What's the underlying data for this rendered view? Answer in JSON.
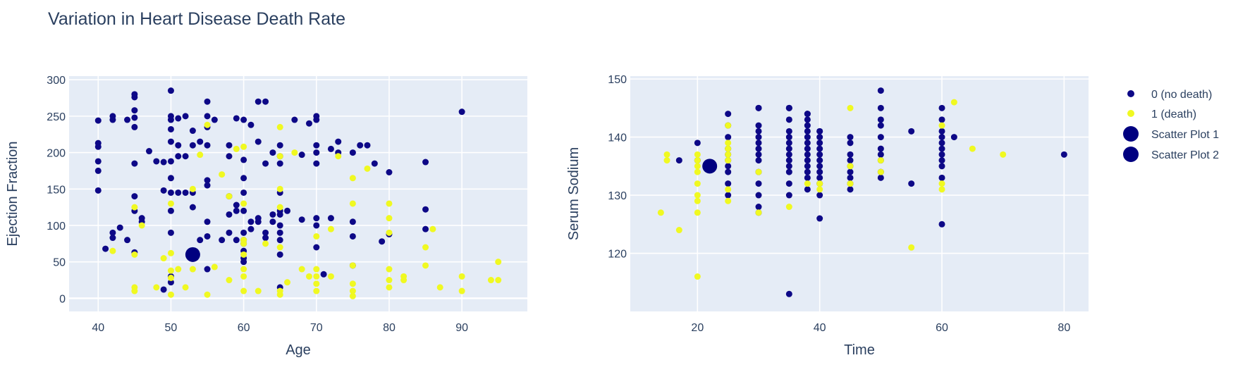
{
  "title": "Variation in Heart Disease Death Rate",
  "colors": {
    "no_death": "#0d0887",
    "death": "#f0f921",
    "plot_bg": "#e5ecf6",
    "text": "#2a3f5f"
  },
  "legend": {
    "items": [
      {
        "label": "0 (no death)",
        "color": "#0d0887",
        "marker": "small"
      },
      {
        "label": "1 (death)",
        "color": "#f0f921",
        "marker": "small"
      },
      {
        "label": "Scatter Plot 1",
        "color": "#000080",
        "marker": "large"
      },
      {
        "label": "Scatter Plot 2",
        "color": "#000080",
        "marker": "large"
      }
    ]
  },
  "chart_data": [
    {
      "type": "scatter",
      "xlabel": "Age",
      "ylabel": "Ejection Fraction",
      "xlim": [
        36,
        99
      ],
      "ylim": [
        -18,
        305
      ],
      "xticks": [
        40,
        50,
        60,
        70,
        80,
        90
      ],
      "yticks": [
        0,
        50,
        100,
        150,
        200,
        250,
        300
      ],
      "grid": true,
      "series": [
        {
          "name": "0 (no death)",
          "x": [
            40,
            40,
            40,
            40,
            40,
            40,
            41,
            42,
            42,
            42,
            42,
            43,
            44,
            44,
            45,
            45,
            45,
            45,
            45,
            45,
            45,
            45,
            45,
            46,
            46,
            47,
            48,
            49,
            49,
            49,
            50,
            50,
            50,
            50,
            50,
            50,
            50,
            50,
            50,
            50,
            50,
            50,
            51,
            51,
            51,
            51,
            52,
            52,
            52,
            53,
            53,
            53,
            53,
            53,
            54,
            54,
            55,
            55,
            55,
            55,
            55,
            55,
            55,
            55,
            55,
            56,
            57,
            58,
            58,
            58,
            58,
            58,
            59,
            59,
            59,
            59,
            60,
            60,
            60,
            60,
            60,
            60,
            60,
            60,
            60,
            60,
            60,
            61,
            61,
            61,
            62,
            62,
            62,
            62,
            63,
            63,
            63,
            63,
            64,
            64,
            64,
            65,
            65,
            65,
            65,
            65,
            65,
            65,
            65,
            65,
            65,
            65,
            66,
            67,
            68,
            68,
            69,
            70,
            70,
            70,
            70,
            70,
            70,
            70,
            70,
            71,
            72,
            72,
            73,
            73,
            75,
            75,
            75,
            75,
            76,
            77,
            78,
            79,
            80,
            80,
            85,
            85,
            85,
            90
          ],
          "y": [
            148,
            175,
            188,
            208,
            213,
            244,
            68,
            83,
            90,
            245,
            250,
            97,
            80,
            245,
            63,
            120,
            140,
            185,
            235,
            248,
            258,
            276,
            280,
            105,
            110,
            202,
            188,
            12,
            148,
            187,
            22,
            30,
            90,
            120,
            145,
            165,
            188,
            215,
            232,
            245,
            250,
            285,
            145,
            195,
            210,
            247,
            145,
            195,
            250,
            65,
            125,
            145,
            210,
            230,
            215,
            80,
            40,
            85,
            105,
            155,
            162,
            210,
            235,
            250,
            270,
            245,
            80,
            90,
            115,
            140,
            195,
            210,
            80,
            120,
            128,
            247,
            50,
            55,
            65,
            75,
            80,
            90,
            120,
            145,
            165,
            190,
            245,
            95,
            105,
            238,
            105,
            110,
            215,
            270,
            83,
            90,
            185,
            270,
            105,
            115,
            200,
            15,
            60,
            80,
            90,
            100,
            115,
            120,
            145,
            185,
            195,
            210,
            120,
            245,
            108,
            197,
            240,
            70,
            100,
            110,
            185,
            200,
            210,
            245,
            250,
            33,
            110,
            205,
            200,
            215,
            45,
            85,
            105,
            200,
            210,
            210,
            185,
            78,
            88,
            173,
            95,
            122,
            187,
            256
          ]
        },
        {
          "name": "1 (death)",
          "x": [
            42,
            45,
            45,
            45,
            45,
            46,
            48,
            49,
            50,
            50,
            50,
            50,
            50,
            51,
            52,
            53,
            53,
            54,
            55,
            55,
            56,
            57,
            58,
            58,
            59,
            60,
            60,
            60,
            60,
            60,
            60,
            60,
            60,
            62,
            63,
            65,
            65,
            65,
            65,
            65,
            65,
            65,
            66,
            67,
            68,
            69,
            70,
            70,
            70,
            70,
            70,
            72,
            72,
            73,
            75,
            75,
            75,
            75,
            75,
            75,
            77,
            80,
            80,
            80,
            80,
            80,
            80,
            82,
            82,
            85,
            85,
            86,
            87,
            90,
            90,
            94,
            95,
            95
          ],
          "y": [
            65,
            10,
            15,
            60,
            125,
            100,
            15,
            55,
            5,
            28,
            38,
            62,
            130,
            40,
            15,
            40,
            150,
            197,
            5,
            238,
            43,
            170,
            25,
            140,
            205,
            10,
            30,
            40,
            60,
            75,
            80,
            130,
            208,
            10,
            75,
            5,
            10,
            70,
            125,
            150,
            195,
            235,
            22,
            200,
            40,
            30,
            10,
            20,
            30,
            40,
            85,
            30,
            95,
            195,
            3,
            10,
            20,
            45,
            130,
            165,
            178,
            15,
            25,
            40,
            90,
            110,
            130,
            25,
            30,
            45,
            70,
            95,
            15,
            10,
            30,
            25,
            25,
            50
          ]
        },
        {
          "name": "Scatter Plot 1",
          "x": [
            53
          ],
          "y": [
            60
          ]
        }
      ]
    },
    {
      "type": "scatter",
      "xlabel": "Time",
      "ylabel": "Serum Sodium",
      "xlim": [
        9,
        84
      ],
      "ylim": [
        110,
        150.5
      ],
      "xticks": [
        20,
        40,
        60,
        80
      ],
      "yticks": [
        120,
        130,
        140,
        150
      ],
      "grid": true,
      "series": [
        {
          "name": "0 (no death)",
          "x": [
            17,
            20,
            20,
            25,
            25,
            25,
            25,
            25,
            25,
            25,
            25,
            25,
            25,
            30,
            30,
            30,
            30,
            30,
            30,
            30,
            30,
            30,
            30,
            30,
            30,
            30,
            30,
            35,
            35,
            35,
            35,
            35,
            35,
            35,
            35,
            35,
            35,
            35,
            35,
            35,
            35,
            35,
            38,
            38,
            38,
            38,
            38,
            38,
            38,
            38,
            38,
            38,
            38,
            38,
            38,
            38,
            40,
            40,
            40,
            40,
            40,
            40,
            40,
            40,
            40,
            40,
            40,
            40,
            40,
            45,
            45,
            45,
            45,
            45,
            45,
            45,
            45,
            45,
            50,
            50,
            50,
            50,
            50,
            50,
            50,
            50,
            50,
            50,
            55,
            55,
            60,
            60,
            60,
            60,
            60,
            60,
            60,
            60,
            60,
            60,
            60,
            62,
            80
          ],
          "y": [
            136,
            136,
            139,
            130,
            132,
            134,
            135,
            136,
            137,
            138,
            140,
            142,
            144,
            127,
            128,
            130,
            132,
            134,
            136,
            137,
            138,
            139,
            140,
            141,
            142,
            145,
            145,
            113,
            130,
            132,
            134,
            135,
            136,
            137,
            138,
            139,
            140,
            141,
            143,
            145,
            145,
            145,
            131,
            133,
            134,
            135,
            136,
            137,
            138,
            139,
            140,
            141,
            142,
            143,
            144,
            144,
            126,
            130,
            132,
            133,
            134,
            135,
            136,
            137,
            138,
            139,
            140,
            141,
            141,
            131,
            132,
            133,
            134,
            135,
            136,
            137,
            139,
            140,
            133,
            134,
            136,
            137,
            138,
            140,
            142,
            143,
            145,
            148,
            132,
            141,
            125,
            133,
            135,
            136,
            137,
            138,
            139,
            140,
            141,
            143,
            145,
            140,
            137
          ]
        },
        {
          "name": "1 (death)",
          "x": [
            14,
            15,
            15,
            17,
            20,
            20,
            20,
            20,
            20,
            20,
            20,
            20,
            20,
            25,
            25,
            25,
            25,
            25,
            25,
            25,
            30,
            30,
            35,
            38,
            40,
            40,
            45,
            45,
            45,
            50,
            50,
            55,
            60,
            60,
            60,
            62,
            65,
            70
          ],
          "y": [
            127,
            136,
            137,
            124,
            116,
            127,
            129,
            130,
            132,
            134,
            135,
            136,
            137,
            129,
            131,
            136,
            137,
            138,
            139,
            142,
            127,
            134,
            128,
            132,
            131,
            132,
            132,
            135,
            145,
            134,
            136,
            121,
            131,
            132,
            142,
            146,
            138,
            137
          ]
        },
        {
          "name": "Scatter Plot 2",
          "x": [
            22
          ],
          "y": [
            135
          ]
        }
      ]
    }
  ]
}
